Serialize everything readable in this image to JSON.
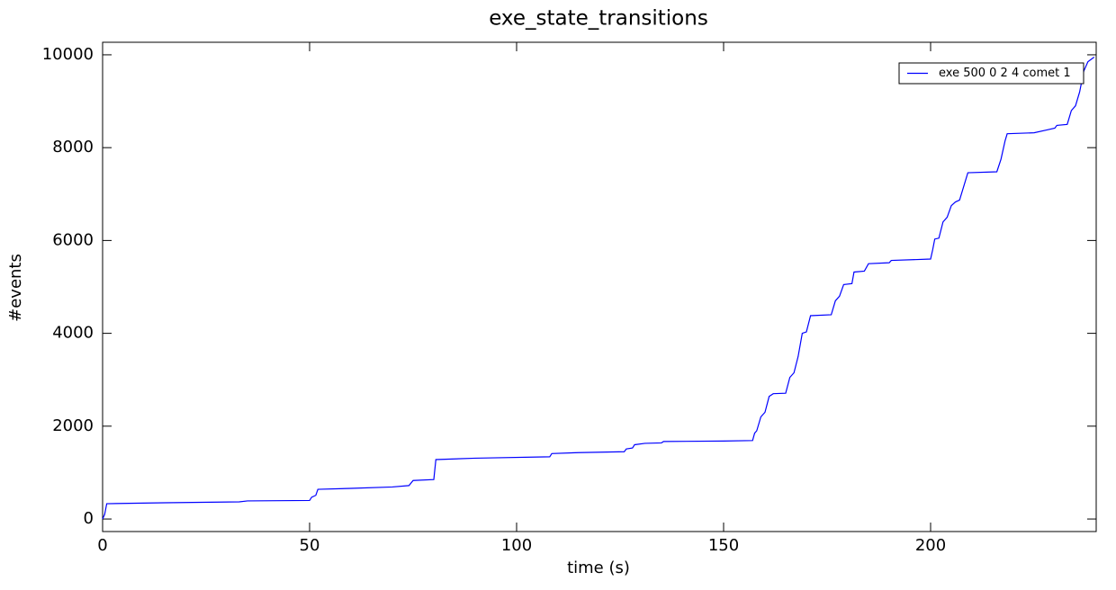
{
  "chart_data": {
    "type": "line",
    "title": "exe_state_transitions",
    "x_label": "time (s)",
    "y_label": "#events",
    "x": [
      0,
      0.5,
      1,
      15,
      33,
      35,
      50,
      50.5,
      51.5,
      52,
      60,
      70,
      74,
      75,
      80,
      80.5,
      90,
      108,
      108.5,
      115,
      126,
      126.5,
      128,
      128.5,
      131,
      135,
      135.5,
      150,
      157,
      157.5,
      158,
      159,
      160,
      161,
      162,
      165,
      166,
      167,
      168,
      169,
      170,
      171,
      176,
      177,
      178,
      179,
      181,
      181.5,
      184,
      185,
      190,
      190.5,
      200,
      200.5,
      201,
      202,
      203,
      204,
      205,
      206,
      207,
      209,
      216,
      217,
      218,
      218.5,
      225,
      228,
      230,
      230.5,
      233,
      234,
      235,
      236,
      237,
      238,
      239.5
    ],
    "series": [
      {
        "name": "exe 500 0 2 4 comet 1",
        "color": "#0000ff",
        "values": [
          0,
          100,
          330,
          350,
          370,
          390,
          400,
          470,
          510,
          640,
          660,
          690,
          720,
          830,
          850,
          1280,
          1310,
          1340,
          1410,
          1430,
          1450,
          1510,
          1530,
          1600,
          1630,
          1640,
          1670,
          1680,
          1690,
          1850,
          1900,
          2200,
          2300,
          2640,
          2700,
          2710,
          3050,
          3150,
          3500,
          4000,
          4030,
          4380,
          4400,
          4700,
          4800,
          5050,
          5070,
          5320,
          5340,
          5500,
          5520,
          5570,
          5600,
          5800,
          6030,
          6050,
          6400,
          6500,
          6750,
          6830,
          6870,
          7460,
          7480,
          7750,
          8150,
          8300,
          8320,
          8380,
          8420,
          8480,
          8500,
          8800,
          8900,
          9200,
          9650,
          9850,
          9950
        ]
      }
    ],
    "xlim": [
      0,
      240
    ],
    "ylim": [
      -270,
      10270
    ],
    "xticks": [
      0,
      50,
      100,
      150,
      200
    ],
    "yticks": [
      0,
      2000,
      4000,
      6000,
      8000,
      10000
    ],
    "legend": "upper right",
    "grid": false
  }
}
